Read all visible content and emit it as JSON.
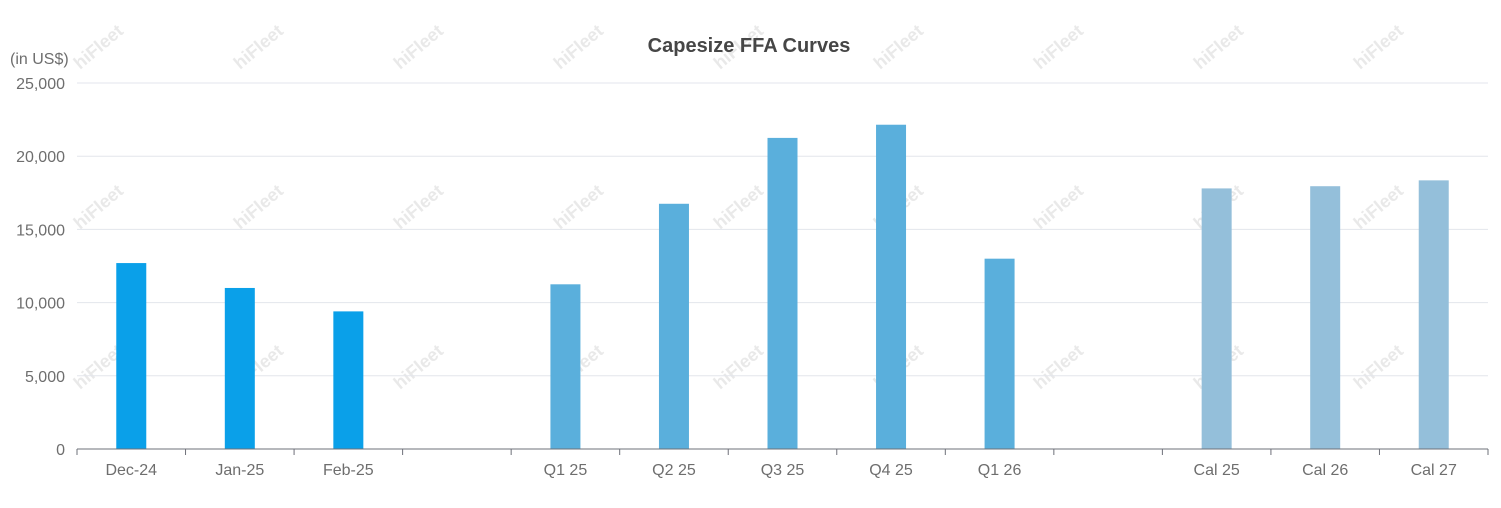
{
  "chart_data": {
    "type": "bar",
    "title": "Capesize FFA Curves",
    "ylabel": "(in US$)",
    "xlabel": "",
    "ylim": [
      0,
      25000
    ],
    "yticks": [
      "0",
      "5,000",
      "10,000",
      "15,000",
      "20,000",
      "25,000"
    ],
    "ytick_values": [
      0,
      5000,
      10000,
      15000,
      20000,
      25000
    ],
    "grid": true,
    "watermark": "hiFleet",
    "categories": [
      "Dec-24",
      "Jan-25",
      "Feb-25",
      "",
      "Q1 25",
      "Q2 25",
      "Q3 25",
      "Q4 25",
      "Q1 26",
      "",
      "Cal 25",
      "Cal 26",
      "Cal 27"
    ],
    "values": [
      12700,
      11000,
      9400,
      null,
      11250,
      16750,
      21250,
      22150,
      13000,
      null,
      17800,
      17950,
      18350
    ],
    "bar_colors": [
      "#0aa0e9",
      "#0aa0e9",
      "#0aa0e9",
      null,
      "#5aafdc",
      "#5aafdc",
      "#5aafdc",
      "#5aafdc",
      "#5aafdc",
      null,
      "#94bfda",
      "#94bfda",
      "#94bfda"
    ],
    "colors": {
      "monthly": "#0aa0e9",
      "quarterly": "#5aafdc",
      "calendar": "#94bfda",
      "grid": "#e3e6ec",
      "axis": "#6e7079"
    }
  }
}
